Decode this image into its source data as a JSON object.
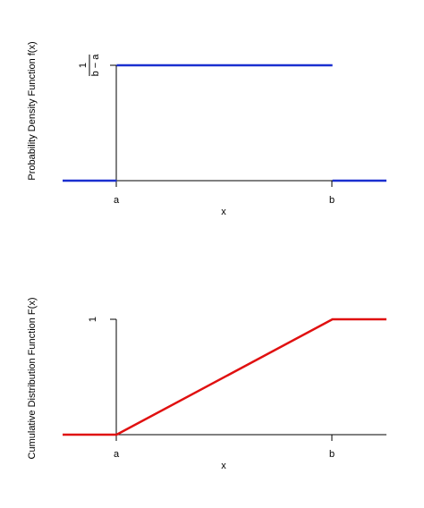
{
  "colors": {
    "pdf_line": "#1a2fd0",
    "cdf_line": "#e01010",
    "axis": "#000000"
  },
  "chart_data": [
    {
      "type": "line",
      "title": "",
      "xlabel": "x",
      "ylabel": "Probability Density Function f(x)",
      "x_ticks": [
        "a",
        "b"
      ],
      "y_ticks": [
        {
          "numerator": "1",
          "denominator": "b − a"
        }
      ],
      "xlim": [
        -0.25,
        1.25
      ],
      "ylim": [
        0,
        1
      ],
      "series": [
        {
          "segments": [
            {
              "x": [
                -0.25,
                0
              ],
              "y": [
                0,
                0
              ]
            },
            {
              "x": [
                0,
                1
              ],
              "y": [
                1,
                1
              ]
            },
            {
              "x": [
                1,
                1.25
              ],
              "y": [
                0,
                0
              ]
            }
          ]
        }
      ],
      "grid": false
    },
    {
      "type": "line",
      "title": "",
      "xlabel": "x",
      "ylabel": "Cumulative Distribution Function F(x)",
      "x_ticks": [
        "a",
        "b"
      ],
      "y_ticks": [
        "1"
      ],
      "xlim": [
        -0.25,
        1.25
      ],
      "ylim": [
        0,
        1
      ],
      "series": [
        {
          "segments": [
            {
              "x": [
                -0.25,
                0,
                1,
                1.25
              ],
              "y": [
                0,
                0,
                1,
                1
              ]
            }
          ]
        }
      ],
      "grid": false
    }
  ]
}
